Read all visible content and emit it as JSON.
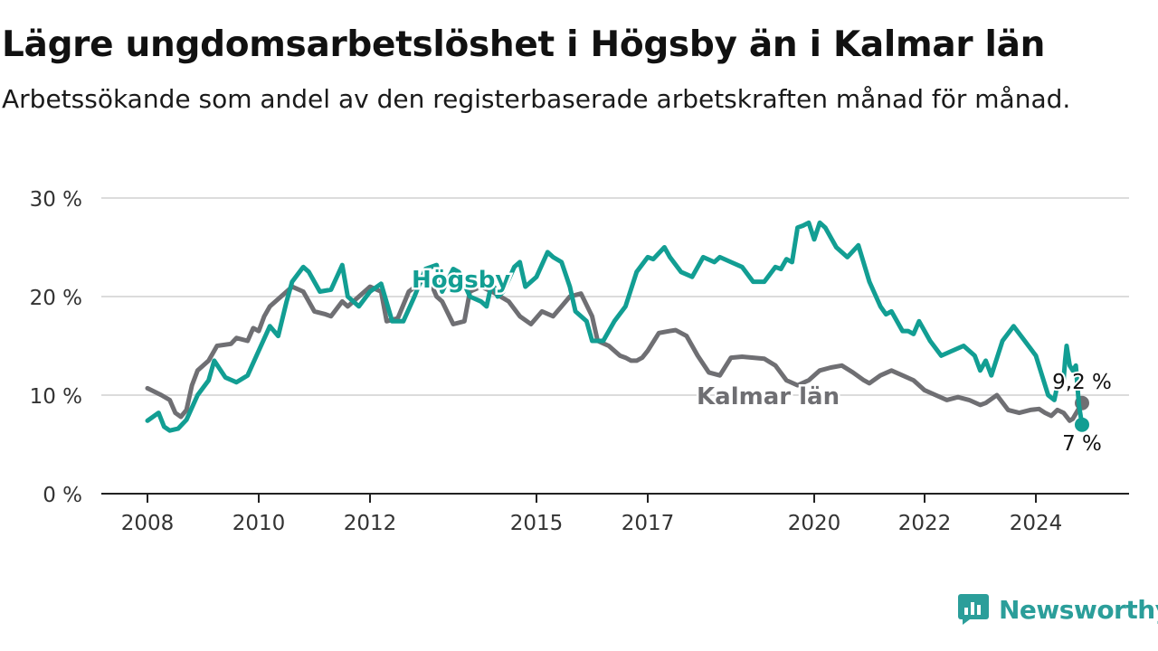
{
  "title": "Lägre ungdomsarbetslöshet i Högsby än i Kalmar län",
  "subtitle": "Arbetssökande som andel av den registerbaserade arbetskraften månad för månad.",
  "brand": {
    "name": "Newsworthy",
    "icon": "newsworthy-chart-logo-icon",
    "color": "#2b9e9a"
  },
  "chart_data": {
    "type": "line",
    "y_unit": "%",
    "ylim": [
      0,
      30
    ],
    "yticks": [
      0,
      10,
      20,
      30
    ],
    "ytick_labels": [
      "0 %",
      "10 %",
      "20 %",
      "30 %"
    ],
    "xlim": [
      2008,
      2025.5
    ],
    "xticks": [
      2008,
      2010,
      2012,
      2015,
      2017,
      2020,
      2022,
      2024
    ],
    "xtick_labels": [
      "2008",
      "2010",
      "2012",
      "2015",
      "2017",
      "2020",
      "2022",
      "2024"
    ],
    "grid": true,
    "series": [
      {
        "name": "Kalmar län",
        "color": "#6f6f73",
        "end_label": "9,2 %",
        "points": [
          [
            2008.0,
            10.7
          ],
          [
            2008.25,
            10.0
          ],
          [
            2008.4,
            9.5
          ],
          [
            2008.5,
            8.2
          ],
          [
            2008.6,
            7.8
          ],
          [
            2008.7,
            8.5
          ],
          [
            2008.8,
            11.0
          ],
          [
            2008.9,
            12.5
          ],
          [
            2009.1,
            13.5
          ],
          [
            2009.25,
            15.0
          ],
          [
            2009.5,
            15.2
          ],
          [
            2009.6,
            15.8
          ],
          [
            2009.8,
            15.5
          ],
          [
            2009.9,
            16.8
          ],
          [
            2010.0,
            16.5
          ],
          [
            2010.1,
            18.0
          ],
          [
            2010.2,
            19.0
          ],
          [
            2010.4,
            20.0
          ],
          [
            2010.6,
            21.0
          ],
          [
            2010.8,
            20.5
          ],
          [
            2011.0,
            18.5
          ],
          [
            2011.2,
            18.2
          ],
          [
            2011.3,
            18.0
          ],
          [
            2011.5,
            19.5
          ],
          [
            2011.6,
            19.0
          ],
          [
            2011.8,
            20.0
          ],
          [
            2012.0,
            21.0
          ],
          [
            2012.2,
            20.5
          ],
          [
            2012.3,
            17.5
          ],
          [
            2012.5,
            17.8
          ],
          [
            2012.7,
            20.5
          ],
          [
            2013.0,
            21.8
          ],
          [
            2013.1,
            21.3
          ],
          [
            2013.2,
            20.0
          ],
          [
            2013.3,
            19.5
          ],
          [
            2013.5,
            17.2
          ],
          [
            2013.7,
            17.5
          ],
          [
            2013.8,
            20.5
          ],
          [
            2014.0,
            21.0
          ],
          [
            2014.2,
            20.5
          ],
          [
            2014.5,
            19.5
          ],
          [
            2014.7,
            18.0
          ],
          [
            2014.9,
            17.2
          ],
          [
            2015.1,
            18.5
          ],
          [
            2015.3,
            18.0
          ],
          [
            2015.45,
            19.0
          ],
          [
            2015.6,
            20.0
          ],
          [
            2015.8,
            20.3
          ],
          [
            2016.0,
            18.0
          ],
          [
            2016.1,
            15.5
          ],
          [
            2016.3,
            15.0
          ],
          [
            2016.5,
            14.0
          ],
          [
            2016.6,
            13.8
          ],
          [
            2016.7,
            13.5
          ],
          [
            2016.8,
            13.5
          ],
          [
            2016.9,
            13.8
          ],
          [
            2017.0,
            14.5
          ],
          [
            2017.2,
            16.3
          ],
          [
            2017.4,
            16.5
          ],
          [
            2017.5,
            16.6
          ],
          [
            2017.7,
            16.0
          ],
          [
            2017.9,
            14.0
          ],
          [
            2018.1,
            12.3
          ],
          [
            2018.3,
            12.0
          ],
          [
            2018.5,
            13.8
          ],
          [
            2018.7,
            13.9
          ],
          [
            2018.9,
            13.8
          ],
          [
            2019.1,
            13.7
          ],
          [
            2019.3,
            13.0
          ],
          [
            2019.5,
            11.5
          ],
          [
            2019.7,
            11.0
          ],
          [
            2019.9,
            11.5
          ],
          [
            2020.1,
            12.5
          ],
          [
            2020.3,
            12.8
          ],
          [
            2020.5,
            13.0
          ],
          [
            2020.7,
            12.3
          ],
          [
            2020.9,
            11.5
          ],
          [
            2021.0,
            11.2
          ],
          [
            2021.2,
            12.0
          ],
          [
            2021.4,
            12.5
          ],
          [
            2021.6,
            12.0
          ],
          [
            2021.8,
            11.5
          ],
          [
            2022.0,
            10.5
          ],
          [
            2022.2,
            10.0
          ],
          [
            2022.4,
            9.5
          ],
          [
            2022.6,
            9.8
          ],
          [
            2022.8,
            9.5
          ],
          [
            2023.0,
            9.0
          ],
          [
            2023.1,
            9.2
          ],
          [
            2023.3,
            10.0
          ],
          [
            2023.5,
            8.5
          ],
          [
            2023.7,
            8.2
          ],
          [
            2023.9,
            8.5
          ],
          [
            2024.1,
            8.6
          ],
          [
            2024.3,
            8.2
          ],
          [
            2024.5,
            7.9
          ],
          [
            2024.7,
            8.5
          ],
          [
            2024.9,
            8.2
          ],
          [
            2025.1,
            7.4
          ],
          [
            2025.2,
            7.6
          ],
          [
            2025.5,
            9.2
          ]
        ]
      },
      {
        "name": "Högsby",
        "color": "#129e93",
        "end_label": "7 %",
        "points": [
          [
            2008.0,
            7.4
          ],
          [
            2008.2,
            8.2
          ],
          [
            2008.3,
            6.8
          ],
          [
            2008.4,
            6.4
          ],
          [
            2008.55,
            6.6
          ],
          [
            2008.7,
            7.5
          ],
          [
            2008.9,
            10.0
          ],
          [
            2009.1,
            11.5
          ],
          [
            2009.2,
            13.5
          ],
          [
            2009.4,
            11.8
          ],
          [
            2009.6,
            11.3
          ],
          [
            2009.8,
            12.0
          ],
          [
            2010.0,
            14.5
          ],
          [
            2010.2,
            17.0
          ],
          [
            2010.35,
            16.0
          ],
          [
            2010.5,
            19.5
          ],
          [
            2010.6,
            21.5
          ],
          [
            2010.8,
            23.0
          ],
          [
            2010.9,
            22.5
          ],
          [
            2011.1,
            20.5
          ],
          [
            2011.3,
            20.7
          ],
          [
            2011.5,
            23.2
          ],
          [
            2011.6,
            20.0
          ],
          [
            2011.8,
            19.0
          ],
          [
            2012.0,
            20.5
          ],
          [
            2012.2,
            21.3
          ],
          [
            2012.4,
            17.5
          ],
          [
            2012.6,
            17.5
          ],
          [
            2012.8,
            20.0
          ],
          [
            2013.0,
            22.8
          ],
          [
            2013.2,
            23.2
          ],
          [
            2013.3,
            20.5
          ],
          [
            2013.5,
            22.8
          ],
          [
            2013.6,
            22.5
          ],
          [
            2013.8,
            20.0
          ],
          [
            2014.0,
            19.5
          ],
          [
            2014.1,
            19.0
          ],
          [
            2014.2,
            21.5
          ],
          [
            2014.3,
            20.0
          ],
          [
            2014.4,
            20.5
          ],
          [
            2014.6,
            23.0
          ],
          [
            2014.7,
            23.5
          ],
          [
            2014.8,
            21.0
          ],
          [
            2015.0,
            22.0
          ],
          [
            2015.2,
            24.5
          ],
          [
            2015.3,
            24.0
          ],
          [
            2015.45,
            23.5
          ],
          [
            2015.6,
            21.0
          ],
          [
            2015.7,
            18.5
          ],
          [
            2015.9,
            17.5
          ],
          [
            2016.0,
            15.5
          ],
          [
            2016.2,
            15.5
          ],
          [
            2016.4,
            17.5
          ],
          [
            2016.6,
            19.0
          ],
          [
            2016.8,
            22.5
          ],
          [
            2017.0,
            24.0
          ],
          [
            2017.1,
            23.8
          ],
          [
            2017.3,
            25.0
          ],
          [
            2017.4,
            24.0
          ],
          [
            2017.6,
            22.5
          ],
          [
            2017.8,
            22.0
          ],
          [
            2018.0,
            24.0
          ],
          [
            2018.2,
            23.5
          ],
          [
            2018.3,
            24.0
          ],
          [
            2018.5,
            23.5
          ],
          [
            2018.7,
            23.0
          ],
          [
            2018.9,
            21.5
          ],
          [
            2019.1,
            21.5
          ],
          [
            2019.3,
            23.0
          ],
          [
            2019.4,
            22.8
          ],
          [
            2019.5,
            23.8
          ],
          [
            2019.6,
            23.5
          ],
          [
            2019.7,
            27.0
          ],
          [
            2019.8,
            27.2
          ],
          [
            2019.9,
            27.5
          ],
          [
            2020.0,
            25.8
          ],
          [
            2020.1,
            27.5
          ],
          [
            2020.2,
            27.0
          ],
          [
            2020.4,
            25.0
          ],
          [
            2020.6,
            24.0
          ],
          [
            2020.8,
            25.2
          ],
          [
            2021.0,
            21.5
          ],
          [
            2021.2,
            19.0
          ],
          [
            2021.3,
            18.2
          ],
          [
            2021.4,
            18.5
          ],
          [
            2021.6,
            16.5
          ],
          [
            2021.7,
            16.5
          ],
          [
            2021.8,
            16.2
          ],
          [
            2021.9,
            17.5
          ],
          [
            2022.0,
            16.5
          ],
          [
            2022.1,
            15.5
          ],
          [
            2022.3,
            14.0
          ],
          [
            2022.5,
            14.5
          ],
          [
            2022.7,
            15.0
          ],
          [
            2022.9,
            14.0
          ],
          [
            2023.0,
            12.5
          ],
          [
            2023.1,
            13.5
          ],
          [
            2023.2,
            12.0
          ],
          [
            2023.4,
            15.5
          ],
          [
            2023.6,
            17.0
          ],
          [
            2023.8,
            15.5
          ],
          [
            2024.0,
            14.0
          ],
          [
            2024.2,
            12.0
          ],
          [
            2024.4,
            10.0
          ],
          [
            2024.6,
            9.5
          ],
          [
            2024.7,
            11.0
          ],
          [
            2024.9,
            11.5
          ],
          [
            2024.95,
            13.5
          ],
          [
            2025.0,
            15.0
          ],
          [
            2025.1,
            13.0
          ],
          [
            2025.2,
            12.5
          ],
          [
            2025.3,
            13.0
          ],
          [
            2025.4,
            9.0
          ],
          [
            2025.5,
            7.0
          ]
        ]
      }
    ]
  }
}
